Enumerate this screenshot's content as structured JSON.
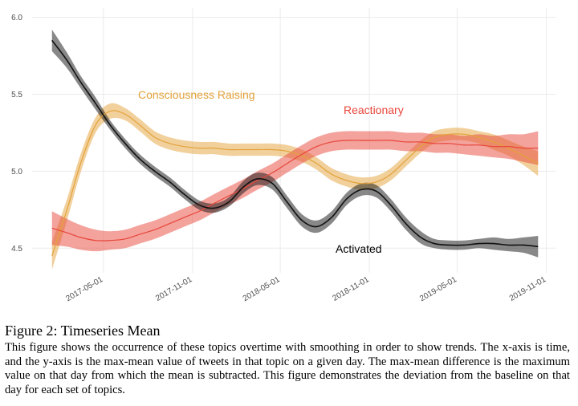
{
  "chart_data": {
    "type": "line",
    "x": [
      "2017-01-15",
      "2017-02-15",
      "2017-03-15",
      "2017-04-15",
      "2017-05-15",
      "2017-06-15",
      "2017-07-15",
      "2017-08-15",
      "2017-09-15",
      "2017-10-15",
      "2017-11-15",
      "2017-12-15",
      "2018-01-15",
      "2018-02-15",
      "2018-03-15",
      "2018-04-15",
      "2018-05-15",
      "2018-06-15",
      "2018-07-15",
      "2018-08-15",
      "2018-09-15",
      "2018-10-15",
      "2018-11-15",
      "2018-12-15",
      "2019-01-15",
      "2019-02-15",
      "2019-03-15",
      "2019-04-15",
      "2019-05-15",
      "2019-06-15",
      "2019-07-15",
      "2019-08-15",
      "2019-09-15",
      "2019-10-15"
    ],
    "series": [
      {
        "name": "Consciousness Raising",
        "color": "#e3a23a",
        "values": [
          4.45,
          4.75,
          5.05,
          5.3,
          5.39,
          5.37,
          5.3,
          5.22,
          5.18,
          5.16,
          5.15,
          5.15,
          5.14,
          5.14,
          5.14,
          5.14,
          5.13,
          5.1,
          5.05,
          4.98,
          4.94,
          4.92,
          4.93,
          4.98,
          5.07,
          5.16,
          5.22,
          5.24,
          5.24,
          5.22,
          5.19,
          5.15,
          5.1,
          5.05
        ],
        "ci": [
          0.09,
          0.07,
          0.06,
          0.05,
          0.05,
          0.04,
          0.04,
          0.04,
          0.04,
          0.04,
          0.04,
          0.04,
          0.04,
          0.04,
          0.04,
          0.04,
          0.04,
          0.04,
          0.04,
          0.04,
          0.04,
          0.04,
          0.04,
          0.04,
          0.04,
          0.04,
          0.04,
          0.04,
          0.04,
          0.04,
          0.05,
          0.05,
          0.06,
          0.08
        ]
      },
      {
        "name": "Reactionary",
        "color": "#e8463a",
        "values": [
          4.63,
          4.6,
          4.57,
          4.55,
          4.55,
          4.56,
          4.59,
          4.62,
          4.66,
          4.7,
          4.74,
          4.79,
          4.84,
          4.89,
          4.94,
          4.99,
          5.05,
          5.11,
          5.16,
          5.19,
          5.2,
          5.2,
          5.2,
          5.2,
          5.19,
          5.19,
          5.18,
          5.18,
          5.17,
          5.17,
          5.16,
          5.16,
          5.15,
          5.15
        ],
        "ci": [
          0.11,
          0.09,
          0.08,
          0.07,
          0.06,
          0.06,
          0.06,
          0.06,
          0.06,
          0.06,
          0.06,
          0.06,
          0.06,
          0.06,
          0.06,
          0.06,
          0.06,
          0.06,
          0.06,
          0.06,
          0.06,
          0.06,
          0.06,
          0.06,
          0.06,
          0.06,
          0.06,
          0.06,
          0.06,
          0.07,
          0.07,
          0.08,
          0.09,
          0.11
        ]
      },
      {
        "name": "Activated",
        "color": "#111111",
        "values": [
          5.85,
          5.72,
          5.58,
          5.44,
          5.3,
          5.18,
          5.08,
          5.0,
          4.93,
          4.85,
          4.78,
          4.76,
          4.8,
          4.9,
          4.95,
          4.92,
          4.8,
          4.68,
          4.64,
          4.7,
          4.82,
          4.88,
          4.87,
          4.78,
          4.66,
          4.57,
          4.53,
          4.52,
          4.52,
          4.53,
          4.53,
          4.52,
          4.52,
          4.51
        ],
        "ci": [
          0.07,
          0.05,
          0.04,
          0.04,
          0.03,
          0.03,
          0.03,
          0.03,
          0.03,
          0.03,
          0.03,
          0.03,
          0.03,
          0.04,
          0.04,
          0.04,
          0.04,
          0.04,
          0.04,
          0.04,
          0.04,
          0.04,
          0.04,
          0.04,
          0.04,
          0.04,
          0.03,
          0.03,
          0.03,
          0.03,
          0.04,
          0.04,
          0.05,
          0.07
        ]
      }
    ],
    "xlim": [
      "2016-12-05",
      "2019-11-20"
    ],
    "xticks": [
      "2017-05-01",
      "2017-11-01",
      "2018-05-01",
      "2018-11-01",
      "2019-05-01",
      "2019-11-01"
    ],
    "ylim": [
      4.34,
      6.06
    ],
    "yticks": [
      4.5,
      {
        "value": 5,
        "label": "5.0"
      },
      5.5,
      {
        "value": 6,
        "label": "6.0"
      }
    ],
    "grid": true
  },
  "caption": {
    "title": "Figure 2: Timeseries Mean",
    "text": "This figure shows the occurrence of these topics overtime with smoothing in order to show trends. The x-axis is time, and the y-axis is the max-mean value of tweets in that topic on a given day. The max-mean difference is the maximum value on that day from which the mean is subtracted. This figure demonstrates the deviation from the baseline on that day for each set of topics."
  }
}
